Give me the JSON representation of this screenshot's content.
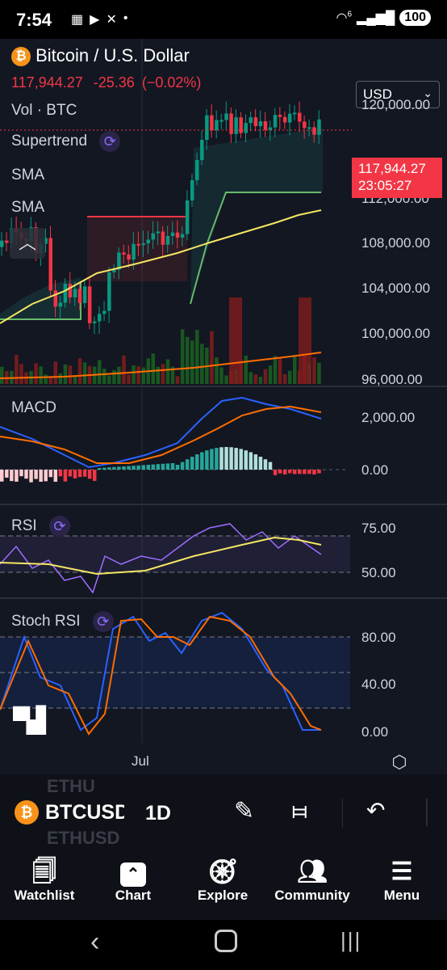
{
  "status_bar": {
    "time": "7:54",
    "battery": "100",
    "network": "6"
  },
  "header": {
    "symbol_name": "Bitcoin / U.S. Dollar",
    "price": "117,944.27",
    "change": "-25.36",
    "change_pct": "(−0.02%)",
    "currency": "USD"
  },
  "legend": {
    "vol": "Vol · BTC",
    "supertrend": "Supertrend",
    "sma1": "SMA",
    "sma2": "SMA"
  },
  "price_axis": {
    "labels": [
      "120,000.00",
      "112,000.00",
      "108,000.00",
      "104,000.00",
      "100,000.00",
      "96,000.00"
    ],
    "last_price": "117,944.27",
    "countdown": "23:05:27"
  },
  "macd": {
    "label": "MACD",
    "labels": [
      "2,000.00",
      "0.00"
    ]
  },
  "rsi": {
    "label": "RSI",
    "labels": [
      "75.00",
      "50.00"
    ]
  },
  "stoch": {
    "label": "Stoch RSI",
    "labels": [
      "80.00",
      "40.00",
      "0.00"
    ]
  },
  "time_axis": {
    "label": "Jul"
  },
  "toolbar": {
    "symbol": "BTCUSD",
    "interval": "1D",
    "ghost_top": "ETHU",
    "ghost_bottom": "ETHUSD"
  },
  "nav": {
    "items": [
      {
        "label": "Watchlist",
        "icon": "bookmark-icon"
      },
      {
        "label": "Chart",
        "icon": "chart-icon"
      },
      {
        "label": "Explore",
        "icon": "compass-icon"
      },
      {
        "label": "Community",
        "icon": "people-icon"
      },
      {
        "label": "Menu",
        "icon": "menu-icon"
      }
    ]
  },
  "colors": {
    "up": "#26a69a",
    "up_bright": "#089981",
    "down": "#f23645",
    "sma_yellow": "#f5e663",
    "macd_blue": "#2962ff",
    "macd_orange": "#ff6d00",
    "rsi_purple": "#9c6dff"
  }
}
